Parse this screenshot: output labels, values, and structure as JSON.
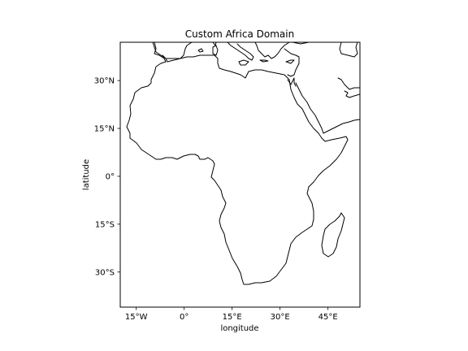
{
  "map": {
    "title": "Custom Africa Domain",
    "xlabel": "longitude",
    "ylabel": "latitude",
    "extent": {
      "lon": [
        -20,
        55
      ],
      "lat": [
        -41,
        42
      ]
    },
    "xticks": [
      {
        "value": -15,
        "label": "15°W"
      },
      {
        "value": 0,
        "label": "0°"
      },
      {
        "value": 15,
        "label": "15°E"
      },
      {
        "value": 30,
        "label": "30°E"
      },
      {
        "value": 45,
        "label": "45°E"
      }
    ],
    "yticks": [
      {
        "value": 30,
        "label": "30°N"
      },
      {
        "value": 15,
        "label": "15°N"
      },
      {
        "value": 0,
        "label": "0°"
      },
      {
        "value": -15,
        "label": "15°S"
      },
      {
        "value": -30,
        "label": "30°S"
      }
    ],
    "colors": {
      "coastline": "#000000",
      "frame": "#000000",
      "background": "#ffffff"
    }
  }
}
